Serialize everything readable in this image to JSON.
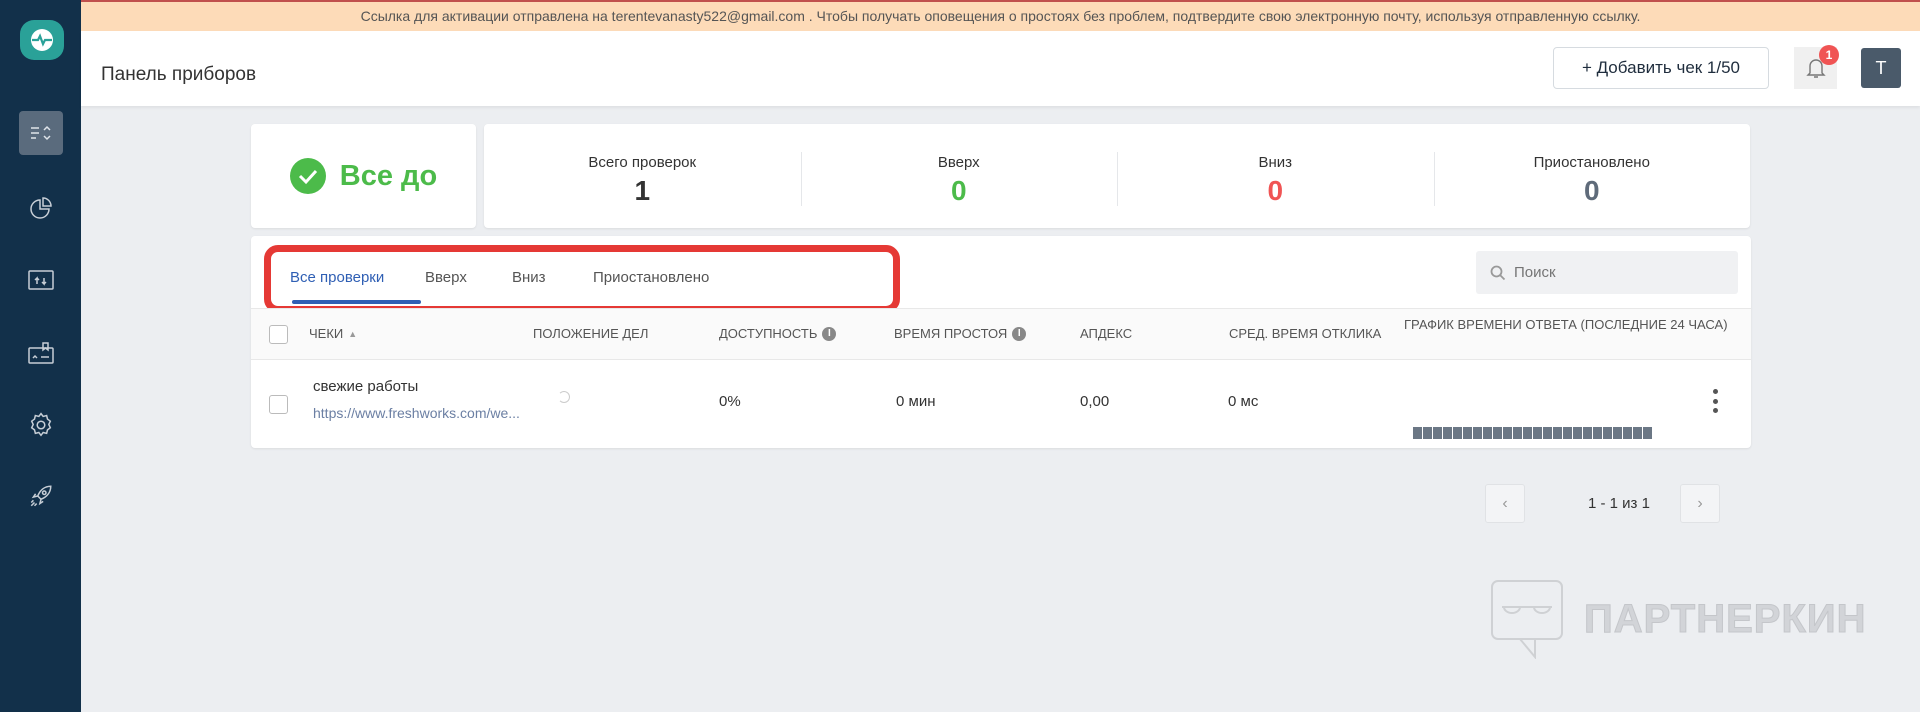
{
  "banner": {
    "text": "Ссылка для активации отправлена на terentevanasty522@gmail.com . Чтобы получать оповещения о простоях без проблем, подтвердите свою электронную почту, используя отправленную ссылку."
  },
  "sidebar": {
    "items": [
      {
        "name": "checks",
        "icon": "list-sort-icon",
        "active": true
      },
      {
        "name": "reports",
        "icon": "pie-chart-icon"
      },
      {
        "name": "status-page",
        "icon": "monitor-updown-icon"
      },
      {
        "name": "integrations",
        "icon": "badge-card-icon"
      },
      {
        "name": "settings",
        "icon": "gear-icon"
      },
      {
        "name": "upgrade",
        "icon": "rocket-icon"
      }
    ]
  },
  "header": {
    "title": "Панель приборов",
    "add_button": "+ Добавить чек 1/50",
    "notifications": "1",
    "avatar": "T"
  },
  "status": {
    "text": "Все до",
    "color": "#4cbb4a"
  },
  "stats": [
    {
      "label": "Всего проверок",
      "value": "1",
      "color": "#333333"
    },
    {
      "label": "Вверх",
      "value": "0",
      "color": "#4cbb4a"
    },
    {
      "label": "Вниз",
      "value": "0",
      "color": "#f05454"
    },
    {
      "label": "Приостановлено",
      "value": "0",
      "color": "#5f6b7a"
    }
  ],
  "tabs": [
    {
      "label": "Все проверки",
      "active": true
    },
    {
      "label": "Вверх"
    },
    {
      "label": "Вниз"
    },
    {
      "label": "Приостановлено"
    }
  ],
  "search": {
    "placeholder": "Поиск"
  },
  "table": {
    "columns": [
      "Чеки",
      "Положение дел",
      "Доступность",
      "Время простоя",
      "Апдекс",
      "Сред. время отклика",
      "График времени ответа (последние 24 часа)"
    ],
    "rows": [
      {
        "name": "свежие работы",
        "url": "https://www.freshworks.com/we...",
        "availability": "0%",
        "downtime": "0 мин",
        "apdex": "0,00",
        "avg_response": "0 мс"
      }
    ]
  },
  "pagination": {
    "text": "1 - 1 из 1",
    "prev": "‹",
    "next": "›"
  },
  "watermark": {
    "text": "ПАРТНЕРКИН"
  }
}
